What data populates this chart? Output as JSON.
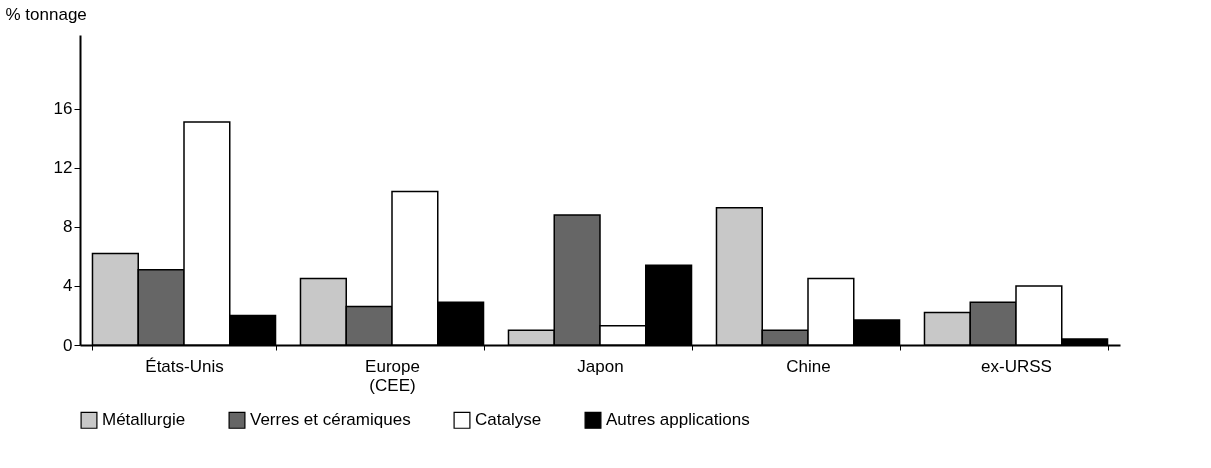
{
  "chart_data": {
    "type": "bar",
    "ylabel": "% tonnage",
    "categories": [
      "États-Unis",
      "Europe (CEE)",
      "Japon",
      "Chine",
      "ex-URSS"
    ],
    "series": [
      {
        "name": "Métallurgie",
        "color": "#c8c8c8",
        "values": [
          6.2,
          4.5,
          1.0,
          9.3,
          2.2
        ]
      },
      {
        "name": "Verres et céramiques",
        "color": "#666666",
        "values": [
          5.1,
          2.6,
          8.8,
          1.0,
          2.9
        ]
      },
      {
        "name": "Catalyse",
        "color": "#ffffff",
        "values": [
          15.1,
          10.4,
          1.3,
          4.5,
          4.0
        ]
      },
      {
        "name": "Autres applications",
        "color": "#000000",
        "values": [
          2.0,
          2.9,
          5.4,
          1.7,
          0.4
        ]
      }
    ],
    "ylim": [
      0,
      21
    ],
    "yticks": [
      0,
      4,
      8,
      12,
      16
    ],
    "grid": false,
    "legend": "bottom"
  }
}
